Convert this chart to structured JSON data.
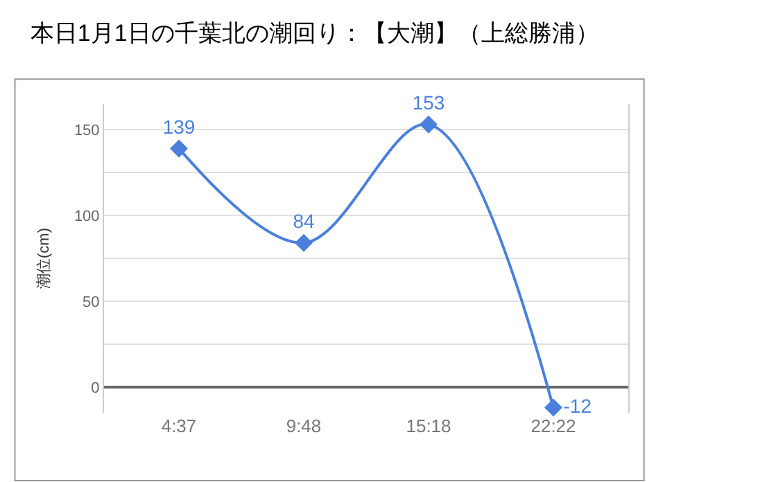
{
  "chart_data": {
    "type": "line",
    "title": "本日1月1日の千葉北の潮回り：【大潮】（上総勝浦）",
    "ylabel": "潮位(cm)",
    "categories": [
      "4:37",
      "9:48",
      "15:18",
      "22:22"
    ],
    "series": [
      {
        "color": "#4a7fdd",
        "values": [
          139,
          84,
          153,
          -12
        ]
      }
    ],
    "ylim": [
      -15,
      165
    ],
    "yticks": [
      0,
      {
        "value": 25,
        "label": null
      },
      50,
      {
        "value": 75,
        "label": null
      },
      100,
      {
        "value": 125,
        "label": null
      },
      150
    ],
    "grid": "y",
    "marker": "diamond",
    "line_style": "solid",
    "data_labels": true
  }
}
